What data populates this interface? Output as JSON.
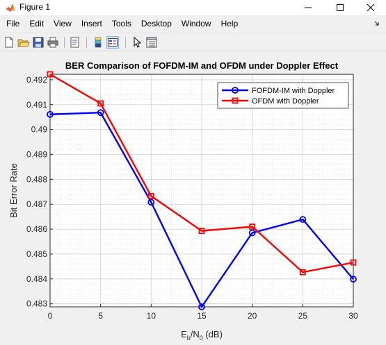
{
  "window": {
    "title": "Figure 1",
    "controls": {
      "minimize": "minimize",
      "maximize": "maximize",
      "close": "close"
    }
  },
  "menu": [
    "File",
    "Edit",
    "View",
    "Insert",
    "Tools",
    "Desktop",
    "Window",
    "Help"
  ],
  "toolbar": [
    {
      "name": "new-figure-icon"
    },
    {
      "name": "open-file-icon"
    },
    {
      "name": "save-icon"
    },
    {
      "name": "print-icon"
    },
    {
      "name": "print-preview-icon"
    },
    {
      "name": "colorbar-icon"
    },
    {
      "name": "legend-icon"
    },
    {
      "name": "edit-plot-icon"
    },
    {
      "name": "property-inspector-icon"
    }
  ],
  "chart_data": {
    "type": "line",
    "title": "BER Comparison of FOFDM-IM and OFDM under Doppler Effect",
    "xlabel": "E_b/N_0 (dB)",
    "xlabel_parts": {
      "E": "E",
      "b": "b",
      "slash": "/N",
      "zero": "0",
      "unit": " (dB)"
    },
    "ylabel": "Bit Error Rate",
    "xlim": [
      0,
      30
    ],
    "ylim": [
      0.48288,
      0.49222
    ],
    "xticks": [
      0,
      5,
      10,
      15,
      20,
      25,
      30
    ],
    "yticks": [
      0.483,
      0.484,
      0.485,
      0.486,
      0.487,
      0.488,
      0.489,
      0.49,
      0.491,
      0.492
    ],
    "grid": true,
    "minor_grid": true,
    "legend_position": "top-right",
    "x": [
      0,
      5,
      10,
      15,
      20,
      25,
      30
    ],
    "series": [
      {
        "name": "FOFDM-IM with Doppler",
        "color": "#0000ff",
        "marker": "circle",
        "values": [
          0.49061,
          0.49068,
          0.48708,
          0.48288,
          0.48585,
          0.48639,
          0.48399
        ]
      },
      {
        "name": "OFDM with Doppler",
        "color": "#ff0000",
        "marker": "square",
        "values": [
          0.49222,
          0.49105,
          0.48733,
          0.48593,
          0.4861,
          0.48427,
          0.48466
        ]
      }
    ]
  }
}
